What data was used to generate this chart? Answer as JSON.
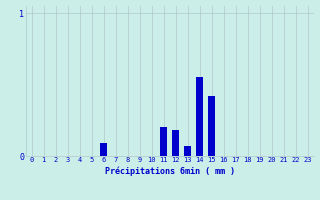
{
  "hours": [
    0,
    1,
    2,
    3,
    4,
    5,
    6,
    7,
    8,
    9,
    10,
    11,
    12,
    13,
    14,
    15,
    16,
    17,
    18,
    19,
    20,
    21,
    22,
    23
  ],
  "values": [
    0,
    0,
    0,
    0,
    0,
    0,
    0.09,
    0,
    0,
    0,
    0,
    0.2,
    0.18,
    0.07,
    0.55,
    0.42,
    0,
    0,
    0,
    0,
    0,
    0,
    0,
    0
  ],
  "bar_color": "#0000cc",
  "bg_color": "#cceee8",
  "grid_color": "#b0c8c8",
  "xlabel": "Précipitations 6min ( mm )",
  "xlabel_color": "#0000cc",
  "ylim": [
    0,
    1.05
  ],
  "xlim": [
    -0.5,
    23.5
  ],
  "tick_fontsize": 5,
  "label_fontsize": 6
}
